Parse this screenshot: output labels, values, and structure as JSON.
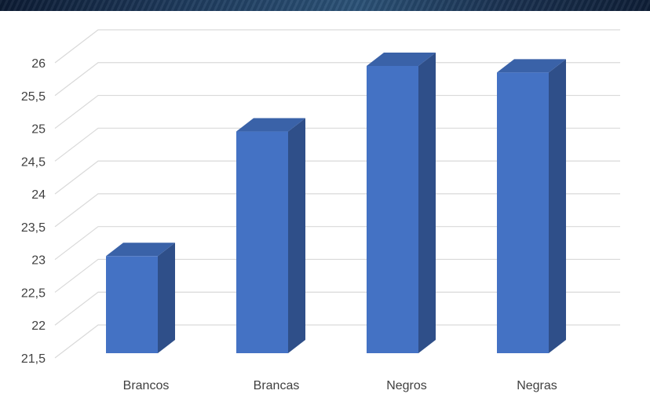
{
  "colors": {
    "bar_front": "#4472c4",
    "bar_side": "#2f4f89",
    "bar_top": "#3a62a8",
    "gridline": "#d9d9d9",
    "text": "#404040"
  },
  "chart_data": {
    "type": "bar",
    "style": "3d-column",
    "title": "",
    "xlabel": "",
    "ylabel": "",
    "categories": [
      "Brancos",
      "Brancas",
      "Negros",
      "Negras"
    ],
    "values": [
      23.1,
      25.0,
      26.0,
      25.9
    ],
    "ylim": [
      21.5,
      26
    ],
    "yticks": [
      21.5,
      22,
      22.5,
      23,
      23.5,
      24,
      24.5,
      25,
      25.5,
      26
    ],
    "ytick_labels": [
      "21,5",
      "22",
      "22,5",
      "23",
      "23,5",
      "24",
      "24,5",
      "25",
      "25,5",
      "26"
    ],
    "grid": true,
    "legend": "none"
  }
}
